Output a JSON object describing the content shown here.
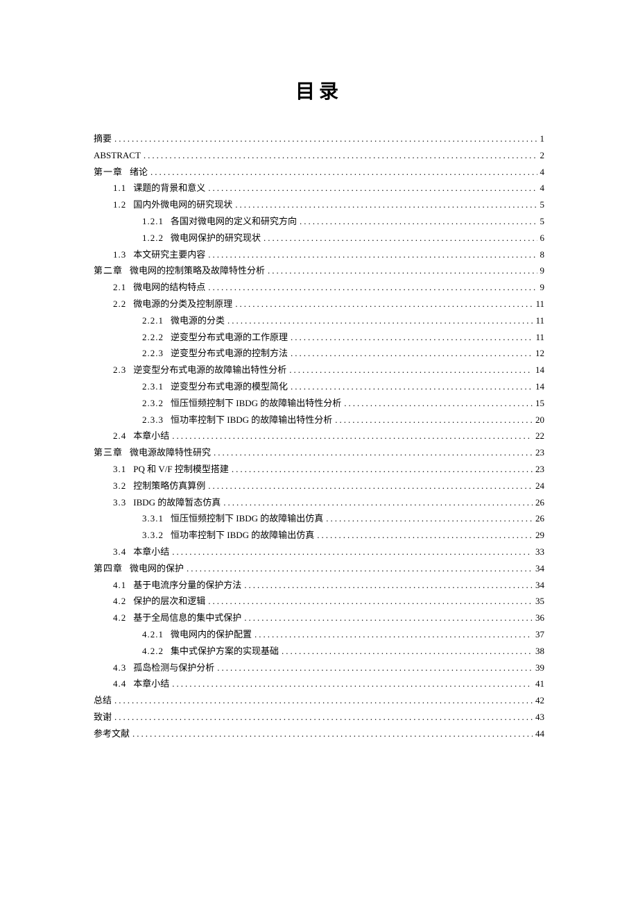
{
  "title": "目录",
  "entries": [
    {
      "indent": 0,
      "num": "",
      "label": "摘要",
      "page": "1"
    },
    {
      "indent": 0,
      "num": "",
      "label": "ABSTRACT",
      "page": "2"
    },
    {
      "indent": 0,
      "num": "第一章",
      "label": "绪论",
      "page": "4"
    },
    {
      "indent": 1,
      "num": "1.1",
      "label": "课题的背景和意义",
      "page": "4"
    },
    {
      "indent": 1,
      "num": "1.2",
      "label": "国内外微电网的研究现状",
      "page": "5"
    },
    {
      "indent": 2,
      "num": "1.2.1",
      "label": "各国对微电网的定义和研究方向",
      "page": "5"
    },
    {
      "indent": 2,
      "num": "1.2.2",
      "label": "微电网保护的研究现状",
      "page": "6"
    },
    {
      "indent": 1,
      "num": "1.3",
      "label": "本文研究主要内容",
      "page": "8"
    },
    {
      "indent": 0,
      "num": "第二章",
      "label": "微电网的控制策略及故障特性分析",
      "page": "9"
    },
    {
      "indent": 1,
      "num": "2.1",
      "label": "微电网的结构特点",
      "page": "9"
    },
    {
      "indent": 1,
      "num": "2.2",
      "label": "微电源的分类及控制原理",
      "page": "11"
    },
    {
      "indent": 2,
      "num": "2.2.1",
      "label": "微电源的分类",
      "page": "11"
    },
    {
      "indent": 2,
      "num": "2.2.2",
      "label": "逆变型分布式电源的工作原理",
      "page": "11"
    },
    {
      "indent": 2,
      "num": "2.2.3",
      "label": "逆变型分布式电源的控制方法",
      "page": "12"
    },
    {
      "indent": 1,
      "num": "2.3",
      "label": "逆变型分布式电源的故障输出特性分析",
      "page": "14"
    },
    {
      "indent": 2,
      "num": "2.3.1",
      "label": "逆变型分布式电源的模型简化",
      "page": "14"
    },
    {
      "indent": 2,
      "num": "2.3.2",
      "label": "恒压恒频控制下 IBDG 的故障输出特性分析",
      "page": "15"
    },
    {
      "indent": 2,
      "num": "2.3.3",
      "label": "恒功率控制下 IBDG 的故障输出特性分析",
      "page": "20"
    },
    {
      "indent": 1,
      "num": "2.4",
      "label": "本章小结",
      "page": "22"
    },
    {
      "indent": 0,
      "num": "第三章",
      "label": "微电源故障特性研究",
      "page": "23"
    },
    {
      "indent": 1,
      "num": "3.1",
      "label": "PQ 和 V/F 控制模型搭建",
      "page": "23"
    },
    {
      "indent": 1,
      "num": "3.2",
      "label": "控制策略仿真算例",
      "page": "24"
    },
    {
      "indent": 1,
      "num": "3.3",
      "label": "IBDG 的故障暂态仿真",
      "page": "26"
    },
    {
      "indent": 2,
      "num": "3.3.1",
      "label": "恒压恒频控制下 IBDG 的故障输出仿真",
      "page": "26"
    },
    {
      "indent": 2,
      "num": "3.3.2",
      "label": "恒功率控制下 IBDG 的故障输出仿真",
      "page": "29"
    },
    {
      "indent": 1,
      "num": "3.4",
      "label": "本章小结",
      "page": "33"
    },
    {
      "indent": 0,
      "num": "第四章",
      "label": "微电网的保护",
      "page": "34"
    },
    {
      "indent": 1,
      "num": "4.1",
      "label": "基于电流序分量的保护方法",
      "page": "34"
    },
    {
      "indent": 1,
      "num": "4.2",
      "label": "保护的层次和逻辑",
      "page": "35"
    },
    {
      "indent": 1,
      "num": "4.2",
      "label": "基于全局信息的集中式保护",
      "page": "36"
    },
    {
      "indent": 2,
      "num": "4.2.1",
      "label": "微电网内的保护配置",
      "page": "37"
    },
    {
      "indent": 2,
      "num": "4.2.2",
      "label": "集中式保护方案的实现基础",
      "page": "38"
    },
    {
      "indent": 1,
      "num": "4.3",
      "label": "孤岛检测与保护分析",
      "page": "39"
    },
    {
      "indent": 1,
      "num": "4.4",
      "label": "本章小结",
      "page": "41"
    },
    {
      "indent": 0,
      "num": "",
      "label": "总结",
      "page": "42"
    },
    {
      "indent": 0,
      "num": "",
      "label": "致谢",
      "page": "43"
    },
    {
      "indent": 0,
      "num": "",
      "label": "参考文献",
      "page": "44"
    }
  ]
}
